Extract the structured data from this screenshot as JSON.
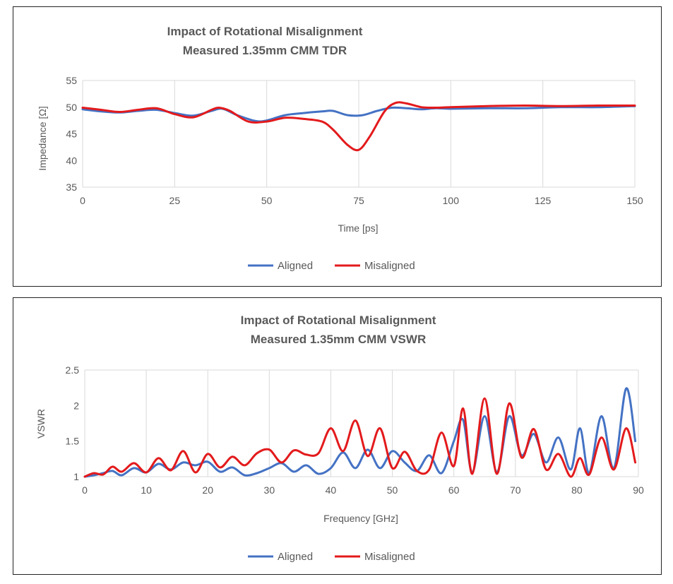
{
  "chart_data": [
    {
      "type": "line",
      "title": [
        "Impact of Rotational Misalignment",
        "Measured 1.35mm CMM TDR"
      ],
      "xlabel": "Time [ps]",
      "ylabel": "Impedance [Ω]",
      "xlim": [
        0,
        150
      ],
      "ylim": [
        35,
        55
      ],
      "xticks": [
        0,
        25,
        50,
        75,
        100,
        125,
        150
      ],
      "yticks": [
        35,
        40,
        45,
        50,
        55
      ],
      "xtick_labels": [
        "0",
        "25",
        "50",
        "75",
        "100",
        "125",
        "150"
      ],
      "ytick_labels": [
        "35",
        "40",
        "45",
        "50",
        "55"
      ],
      "grid": "vertical",
      "legend_position": "bottom",
      "series": [
        {
          "name": "Aligned",
          "color": "#4472C4",
          "x": [
            0,
            5,
            10,
            15,
            20,
            25,
            30,
            35,
            38,
            42,
            47,
            50,
            55,
            60,
            65,
            68,
            72,
            76,
            80,
            84,
            88,
            92,
            96,
            100,
            110,
            120,
            130,
            140,
            150
          ],
          "y": [
            49.6,
            49.2,
            49.0,
            49.3,
            49.5,
            48.9,
            48.4,
            49.3,
            49.7,
            48.5,
            47.4,
            47.5,
            48.5,
            48.9,
            49.2,
            49.3,
            48.5,
            48.5,
            49.3,
            49.9,
            49.8,
            49.6,
            49.8,
            49.7,
            49.8,
            49.8,
            50.0,
            50.0,
            50.2
          ]
        },
        {
          "name": "Misaligned",
          "color": "#E31A1C",
          "x": [
            0,
            5,
            10,
            15,
            20,
            25,
            30,
            35,
            37,
            40,
            45,
            50,
            55,
            60,
            65,
            68,
            72,
            75,
            78,
            82,
            85,
            88,
            92,
            96,
            100,
            110,
            120,
            130,
            140,
            150
          ],
          "y": [
            49.9,
            49.5,
            49.1,
            49.5,
            49.8,
            48.7,
            48.1,
            49.5,
            49.9,
            49.3,
            47.3,
            47.3,
            48.0,
            47.8,
            47.3,
            45.8,
            42.9,
            42.0,
            44.5,
            49.2,
            50.8,
            50.7,
            50.0,
            49.9,
            50.0,
            50.2,
            50.3,
            50.2,
            50.3,
            50.3
          ]
        }
      ]
    },
    {
      "type": "line",
      "title": [
        "Impact of Rotational Misalignment",
        "Measured 1.35mm CMM VSWR"
      ],
      "xlabel": "Frequency [GHz]",
      "ylabel": "VSWR",
      "xlim": [
        0,
        90
      ],
      "ylim": [
        1,
        2.5
      ],
      "xticks": [
        0,
        10,
        20,
        30,
        40,
        50,
        60,
        70,
        80,
        90
      ],
      "yticks": [
        1,
        1.5,
        2,
        2.5
      ],
      "xtick_labels": [
        "0",
        "10",
        "20",
        "30",
        "40",
        "50",
        "60",
        "70",
        "80",
        "90"
      ],
      "ytick_labels": [
        "1",
        "1.5",
        "2",
        "2.5"
      ],
      "grid": "vertical",
      "legend_position": "bottom",
      "series": [
        {
          "name": "Aligned",
          "color": "#4472C4",
          "x": [
            0,
            1.5,
            3,
            4.5,
            6,
            8,
            10,
            12,
            14,
            16,
            18,
            20,
            22,
            24,
            26,
            28,
            30,
            32,
            34,
            36,
            38,
            40,
            42,
            44,
            46,
            48,
            50,
            52,
            54,
            56,
            58,
            60,
            61.5,
            63,
            65,
            67,
            69,
            71,
            73,
            75,
            77,
            79,
            80.5,
            82,
            84,
            86,
            88,
            89.5
          ],
          "y": [
            1.0,
            1.02,
            1.05,
            1.08,
            1.02,
            1.12,
            1.06,
            1.18,
            1.1,
            1.2,
            1.16,
            1.21,
            1.07,
            1.13,
            1.02,
            1.05,
            1.12,
            1.19,
            1.07,
            1.16,
            1.04,
            1.12,
            1.34,
            1.12,
            1.38,
            1.12,
            1.36,
            1.2,
            1.08,
            1.3,
            1.05,
            1.5,
            1.8,
            1.06,
            1.85,
            1.07,
            1.85,
            1.3,
            1.6,
            1.2,
            1.55,
            1.1,
            1.68,
            1.05,
            1.85,
            1.12,
            2.24,
            1.5
          ]
        },
        {
          "name": "Misaligned",
          "color": "#E31A1C",
          "x": [
            0,
            1.5,
            3,
            4.5,
            6,
            8,
            10,
            12,
            14,
            16,
            18,
            20,
            22,
            24,
            26,
            28,
            30,
            32,
            34,
            36,
            38,
            40,
            42,
            44,
            46,
            48,
            50,
            52,
            54,
            56,
            58,
            60,
            61.5,
            63,
            65,
            67,
            69,
            71,
            73,
            75,
            77,
            79,
            80.5,
            82,
            84,
            86,
            88,
            89.5
          ],
          "y": [
            1.0,
            1.05,
            1.03,
            1.14,
            1.07,
            1.19,
            1.06,
            1.26,
            1.09,
            1.36,
            1.06,
            1.32,
            1.13,
            1.28,
            1.16,
            1.33,
            1.38,
            1.2,
            1.37,
            1.31,
            1.33,
            1.68,
            1.36,
            1.79,
            1.29,
            1.68,
            1.12,
            1.35,
            1.08,
            1.1,
            1.62,
            1.15,
            1.96,
            1.04,
            2.1,
            1.04,
            2.03,
            1.27,
            1.67,
            1.1,
            1.32,
            1.0,
            1.26,
            1.03,
            1.55,
            1.1,
            1.68,
            1.2
          ]
        }
      ]
    }
  ]
}
